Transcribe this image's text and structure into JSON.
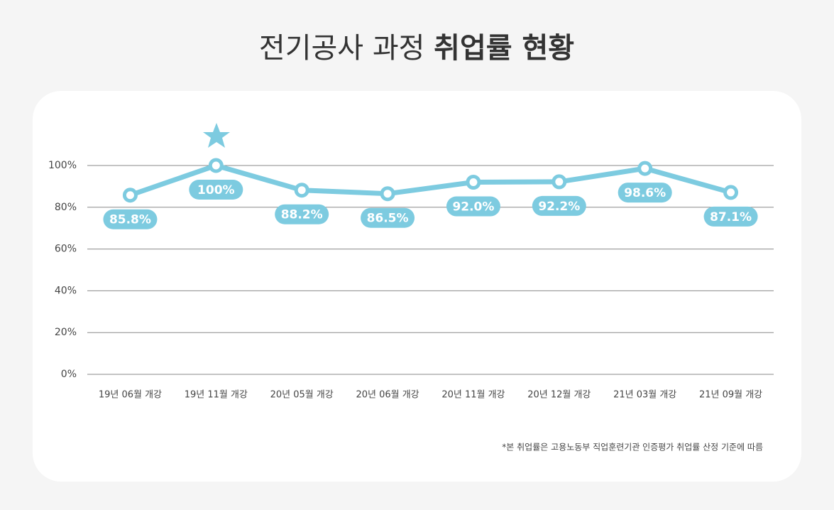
{
  "chart_data": {
    "type": "line",
    "title": [
      "전기공사 과정",
      "취업률 현황"
    ],
    "categories": [
      "19년 06월 개강",
      "19년 11월 개강",
      "20년 05월 개강",
      "20년 06월 개강",
      "20년 11월 개강",
      "20년 12월 개강",
      "21년 03월 개강",
      "21년 09월 개강"
    ],
    "values": [
      85.8,
      100,
      88.2,
      86.5,
      92.0,
      92.2,
      98.6,
      87.1
    ],
    "value_labels": [
      "85.8%",
      "100%",
      "88.2%",
      "86.5%",
      "92.0%",
      "92.2%",
      "98.6%",
      "87.1%"
    ],
    "color": "#7dcbe0",
    "ylim": [
      0,
      100
    ],
    "yticks": [
      {
        "value": 0,
        "label": "0%"
      },
      {
        "value": 20,
        "label": "20%"
      },
      {
        "value": 40,
        "label": "40%"
      },
      {
        "value": 60,
        "label": "60%"
      },
      {
        "value": 80,
        "label": "80%"
      },
      {
        "value": 100,
        "label": "100%"
      }
    ],
    "grid": true,
    "footnote": "*본 취업률은 고용노동부 직업훈련기관 인증평가 취업률 산정 기준에 따름"
  }
}
